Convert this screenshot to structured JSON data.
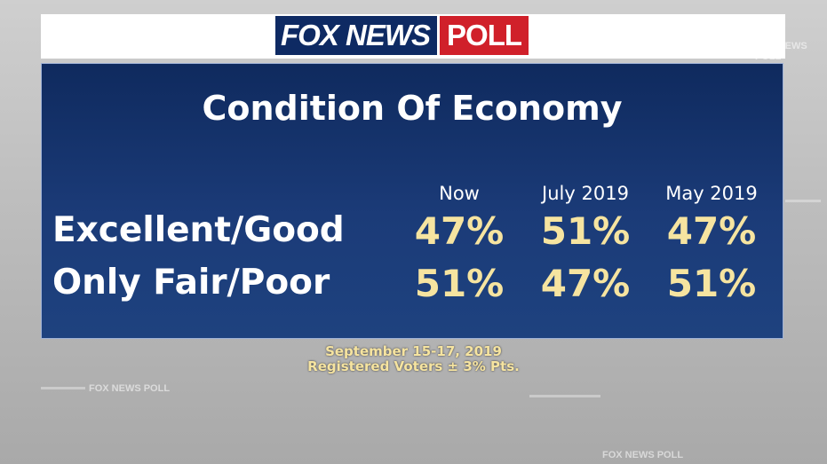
{
  "logo": {
    "brand": "FOX NEWS",
    "suffix": "POLL"
  },
  "background_watermark": "FOX NEWS POLL",
  "chart_data": {
    "type": "table",
    "title": "Condition Of Economy",
    "columns": [
      "Now",
      "July 2019",
      "May 2019"
    ],
    "rows": [
      {
        "label": "Excellent/Good",
        "values": [
          "47%",
          "51%",
          "47%"
        ]
      },
      {
        "label": "Only Fair/Poor",
        "values": [
          "51%",
          "47%",
          "51%"
        ]
      }
    ]
  },
  "footnote": {
    "dates": "September 15-17, 2019",
    "sample": "Registered Voters ± 3% Pts."
  },
  "colors": {
    "panel": "#16336b",
    "value_text": "#f6e4a0",
    "logo_blue": "#0e2a63",
    "logo_red": "#d0202a"
  }
}
